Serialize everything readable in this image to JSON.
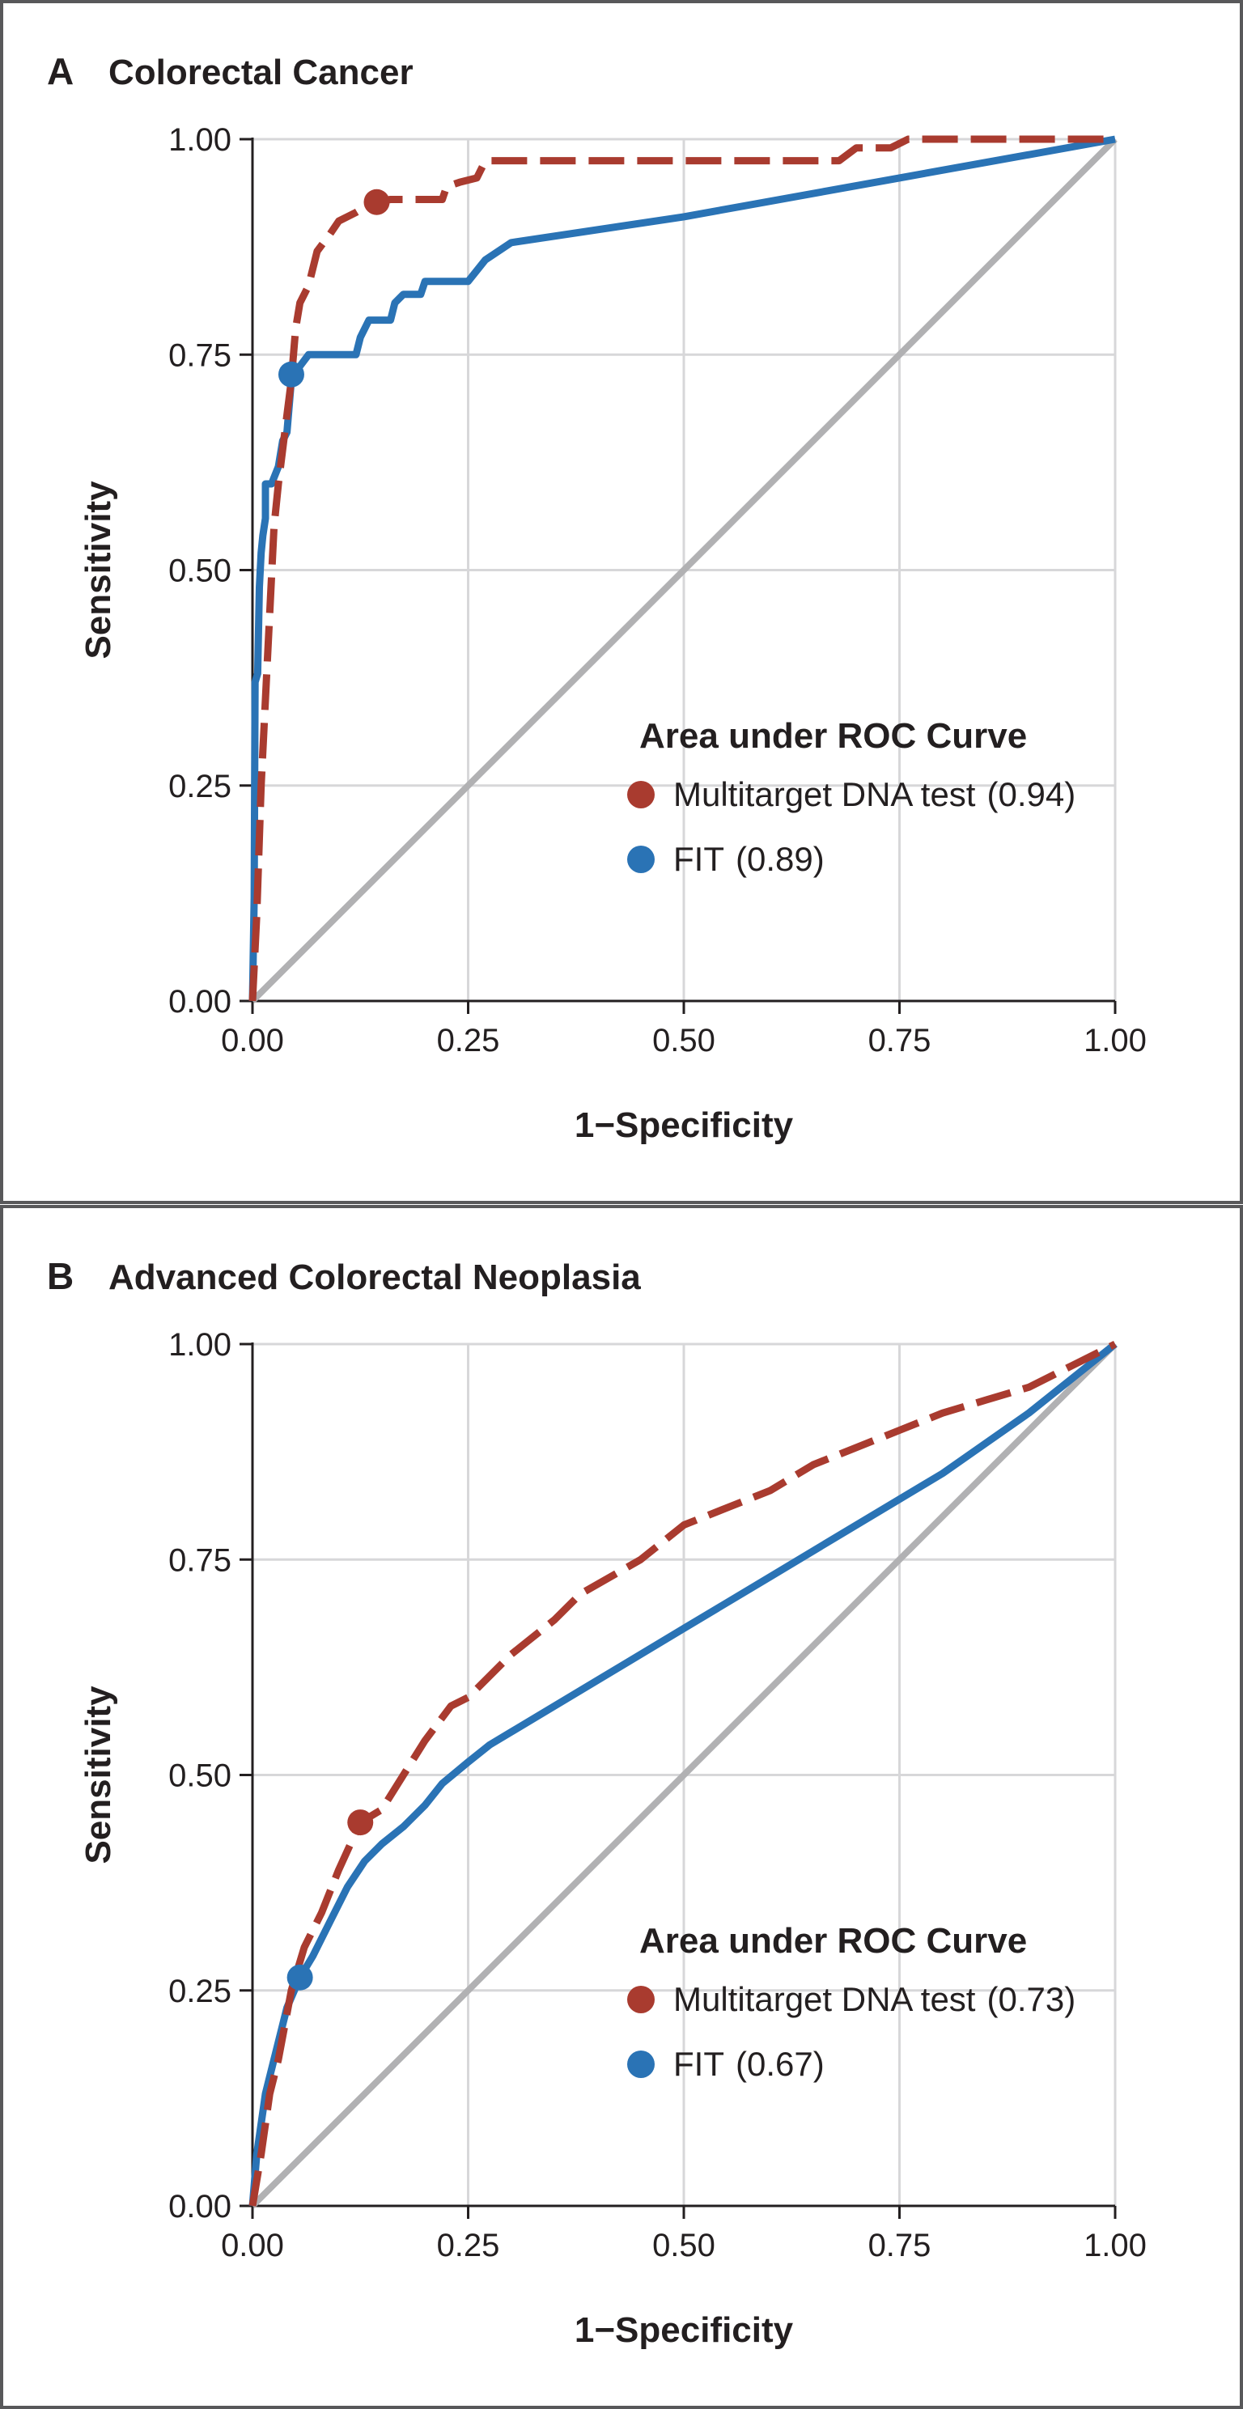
{
  "chart_data": [
    {
      "type": "line",
      "panel_letter": "A",
      "title": "Colorectal Cancer",
      "xlabel": "1−Specificity",
      "ylabel": "Sensitivity",
      "xlim": [
        0,
        1
      ],
      "ylim": [
        0,
        1
      ],
      "x_ticks": [
        "0.00",
        "0.25",
        "0.50",
        "0.75",
        "1.00"
      ],
      "y_ticks": [
        "0.00",
        "0.25",
        "0.50",
        "0.75",
        "1.00"
      ],
      "grid": true,
      "legend": {
        "title": "Area under ROC Curve",
        "position": "bottom-right"
      },
      "reference_line": {
        "color": "#b1b1b3",
        "points": [
          [
            0,
            0
          ],
          [
            1,
            1
          ]
        ]
      },
      "series": [
        {
          "name": "Multitarget DNA test",
          "legend_label": "Multitarget DNA test",
          "auc": "(0.94)",
          "color": "#a93b2f",
          "style": "dashed",
          "marker": [
            0.144,
            0.927
          ],
          "points": [
            [
              0,
              0
            ],
            [
              0.005,
              0.1
            ],
            [
              0.01,
              0.25
            ],
            [
              0.015,
              0.35
            ],
            [
              0.02,
              0.45
            ],
            [
              0.025,
              0.55
            ],
            [
              0.03,
              0.6
            ],
            [
              0.035,
              0.64
            ],
            [
              0.04,
              0.68
            ],
            [
              0.045,
              0.72
            ],
            [
              0.05,
              0.78
            ],
            [
              0.055,
              0.81
            ],
            [
              0.065,
              0.83
            ],
            [
              0.075,
              0.87
            ],
            [
              0.09,
              0.89
            ],
            [
              0.1,
              0.905
            ],
            [
              0.12,
              0.915
            ],
            [
              0.14,
              0.927
            ],
            [
              0.16,
              0.93
            ],
            [
              0.22,
              0.93
            ],
            [
              0.225,
              0.945
            ],
            [
              0.24,
              0.95
            ],
            [
              0.26,
              0.955
            ],
            [
              0.27,
              0.975
            ],
            [
              0.3,
              0.975
            ],
            [
              0.5,
              0.975
            ],
            [
              0.68,
              0.975
            ],
            [
              0.7,
              0.99
            ],
            [
              0.74,
              0.99
            ],
            [
              0.76,
              1.0
            ],
            [
              0.9,
              1.0
            ],
            [
              1.0,
              1.0
            ]
          ]
        },
        {
          "name": "FIT",
          "legend_label": "FIT",
          "auc": "(0.89)",
          "color": "#2a73b5",
          "style": "solid",
          "marker": [
            0.045,
            0.727
          ],
          "points": [
            [
              0,
              0
            ],
            [
              0.002,
              0.12
            ],
            [
              0.003,
              0.37
            ],
            [
              0.006,
              0.38
            ],
            [
              0.008,
              0.48
            ],
            [
              0.01,
              0.52
            ],
            [
              0.012,
              0.54
            ],
            [
              0.015,
              0.56
            ],
            [
              0.015,
              0.6
            ],
            [
              0.022,
              0.6
            ],
            [
              0.03,
              0.62
            ],
            [
              0.035,
              0.65
            ],
            [
              0.04,
              0.66
            ],
            [
              0.045,
              0.72
            ],
            [
              0.05,
              0.73
            ],
            [
              0.065,
              0.75
            ],
            [
              0.12,
              0.75
            ],
            [
              0.125,
              0.77
            ],
            [
              0.135,
              0.79
            ],
            [
              0.16,
              0.79
            ],
            [
              0.165,
              0.81
            ],
            [
              0.175,
              0.82
            ],
            [
              0.195,
              0.82
            ],
            [
              0.2,
              0.835
            ],
            [
              0.25,
              0.835
            ],
            [
              0.27,
              0.86
            ],
            [
              0.3,
              0.88
            ],
            [
              0.5,
              0.91
            ],
            [
              0.75,
              0.955
            ],
            [
              1.0,
              1.0
            ]
          ]
        }
      ]
    },
    {
      "type": "line",
      "panel_letter": "B",
      "title": "Advanced Colorectal Neoplasia",
      "xlabel": "1−Specificity",
      "ylabel": "Sensitivity",
      "xlim": [
        0,
        1
      ],
      "ylim": [
        0,
        1
      ],
      "x_ticks": [
        "0.00",
        "0.25",
        "0.50",
        "0.75",
        "1.00"
      ],
      "y_ticks": [
        "0.00",
        "0.25",
        "0.50",
        "0.75",
        "1.00"
      ],
      "grid": true,
      "legend": {
        "title": "Area under ROC Curve",
        "position": "bottom-right"
      },
      "reference_line": {
        "color": "#b1b1b3",
        "points": [
          [
            0,
            0
          ],
          [
            1,
            1
          ]
        ]
      },
      "series": [
        {
          "name": "Multitarget DNA test",
          "legend_label": "Multitarget DNA test",
          "auc": "(0.73)",
          "color": "#a93b2f",
          "style": "dashed",
          "marker": [
            0.125,
            0.445
          ],
          "points": [
            [
              0,
              0
            ],
            [
              0.01,
              0.06
            ],
            [
              0.02,
              0.13
            ],
            [
              0.03,
              0.17
            ],
            [
              0.045,
              0.25
            ],
            [
              0.06,
              0.3
            ],
            [
              0.08,
              0.34
            ],
            [
              0.1,
              0.39
            ],
            [
              0.125,
              0.445
            ],
            [
              0.15,
              0.46
            ],
            [
              0.175,
              0.5
            ],
            [
              0.2,
              0.54
            ],
            [
              0.23,
              0.58
            ],
            [
              0.25,
              0.59
            ],
            [
              0.3,
              0.64
            ],
            [
              0.35,
              0.68
            ],
            [
              0.38,
              0.71
            ],
            [
              0.45,
              0.75
            ],
            [
              0.5,
              0.79
            ],
            [
              0.55,
              0.81
            ],
            [
              0.6,
              0.83
            ],
            [
              0.65,
              0.86
            ],
            [
              0.7,
              0.88
            ],
            [
              0.75,
              0.9
            ],
            [
              0.8,
              0.92
            ],
            [
              0.85,
              0.935
            ],
            [
              0.9,
              0.95
            ],
            [
              0.95,
              0.975
            ],
            [
              1.0,
              1.0
            ]
          ]
        },
        {
          "name": "FIT",
          "legend_label": "FIT",
          "auc": "(0.67)",
          "color": "#2a73b5",
          "style": "solid",
          "marker": [
            0.055,
            0.265
          ],
          "points": [
            [
              0,
              0
            ],
            [
              0.005,
              0.06
            ],
            [
              0.015,
              0.13
            ],
            [
              0.025,
              0.17
            ],
            [
              0.04,
              0.23
            ],
            [
              0.055,
              0.265
            ],
            [
              0.07,
              0.29
            ],
            [
              0.09,
              0.33
            ],
            [
              0.11,
              0.37
            ],
            [
              0.13,
              0.4
            ],
            [
              0.15,
              0.42
            ],
            [
              0.175,
              0.44
            ],
            [
              0.2,
              0.465
            ],
            [
              0.22,
              0.49
            ],
            [
              0.25,
              0.515
            ],
            [
              0.275,
              0.535
            ],
            [
              0.3,
              0.55
            ],
            [
              0.4,
              0.61
            ],
            [
              0.5,
              0.67
            ],
            [
              0.6,
              0.73
            ],
            [
              0.7,
              0.79
            ],
            [
              0.8,
              0.85
            ],
            [
              0.9,
              0.92
            ],
            [
              1.0,
              1.0
            ]
          ]
        }
      ]
    }
  ]
}
